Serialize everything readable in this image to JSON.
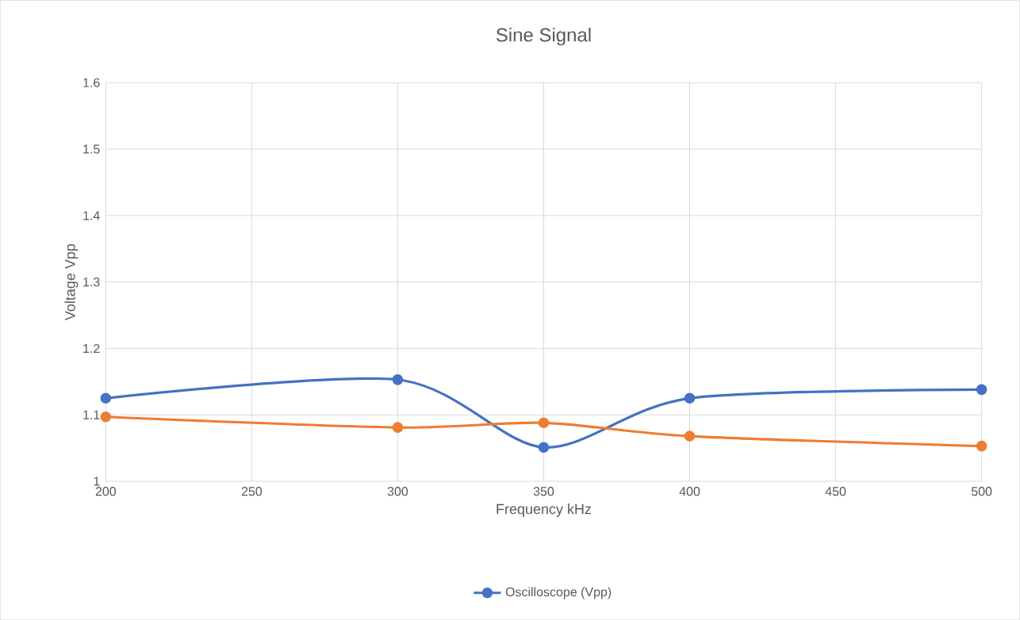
{
  "chart_data": {
    "type": "line",
    "title": "Sine Signal",
    "xlabel": "Frequency kHz",
    "ylabel": "Voltage Vpp",
    "x": [
      200,
      300,
      350,
      400,
      500
    ],
    "series": [
      {
        "name": "Oscilloscope (Vpp)",
        "color": "#4472c4",
        "values": [
          1.125,
          1.153,
          1.051,
          1.125,
          1.138
        ]
      },
      {
        "color": "#ed7d31",
        "values": [
          1.097,
          1.081,
          1.088,
          1.068,
          1.053
        ]
      }
    ],
    "xlim": [
      200,
      500
    ],
    "xticks": [
      200,
      250,
      300,
      350,
      400,
      450,
      500
    ],
    "ylim": [
      1,
      1.6
    ],
    "yticks": [
      1,
      1.1,
      1.2,
      1.3,
      1.4,
      1.5,
      1.6
    ],
    "grid": true,
    "legend": "bottom",
    "marker": "circle",
    "line_style": "solid"
  }
}
